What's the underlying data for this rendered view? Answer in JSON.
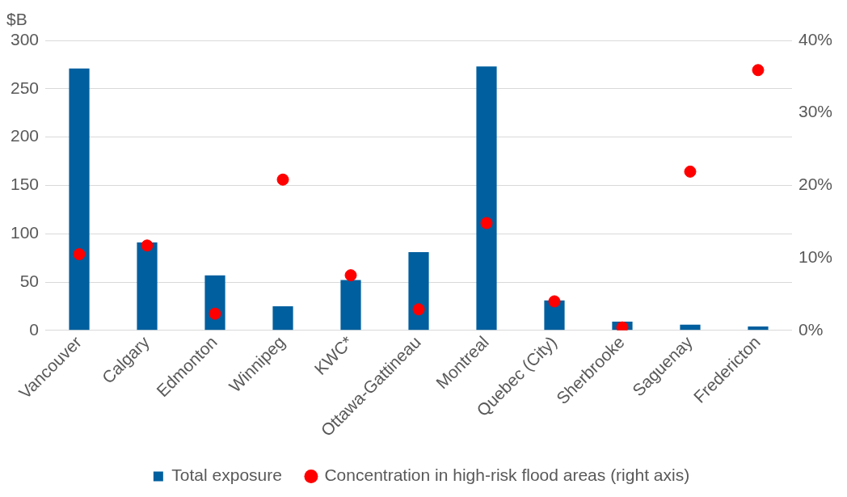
{
  "chart_data": {
    "type": "bar",
    "ylabel": "$B",
    "categories": [
      "Vancouver",
      "Calgary",
      "Edmonton",
      "Winnipeg",
      "KWC*",
      "Ottawa-Gattineau",
      "Montreal",
      "Quebec (City)",
      "Sherbrooke",
      "Saguenay",
      "Fredericton"
    ],
    "series": [
      {
        "name": "Total exposure",
        "color": "#005f9e",
        "values": [
          271,
          91,
          57,
          25,
          52,
          81,
          273,
          31,
          9,
          6,
          4
        ]
      },
      {
        "name": "Concentration in high-risk flood areas (right axis)",
        "type": "scatter",
        "axis": "y2",
        "color": "#ff0000",
        "marker": "circle",
        "x": [
          "Vancouver",
          "Calgary",
          "Edmonton",
          "Winnipeg",
          "KWC*",
          "Ottawa-Gattineau",
          "Montreal",
          "Quebec (City)",
          "Sherbrooke",
          "Saguenay",
          "Fredericton"
        ],
        "values": [
          10.5,
          11.7,
          2.3,
          20.8,
          7.6,
          2.9,
          14.8,
          4.0,
          0.4,
          21.9,
          35.9
        ]
      }
    ],
    "ylim": [
      0,
      300
    ],
    "yticks": [
      0,
      50,
      100,
      150,
      200,
      250,
      300
    ],
    "y2lim": [
      0,
      40
    ],
    "y2ticks": [
      {
        "value": 0,
        "label": "0%"
      },
      {
        "value": 10,
        "label": "10%"
      },
      {
        "value": 20,
        "label": "20%"
      },
      {
        "value": 30,
        "label": "30%"
      },
      {
        "value": 40,
        "label": "40%"
      }
    ],
    "grid": "y",
    "legend": "bottom"
  }
}
